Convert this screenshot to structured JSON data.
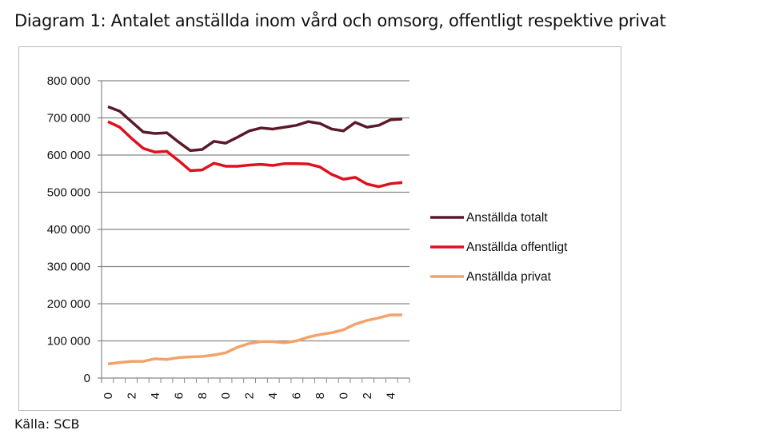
{
  "title": "Diagram 1: Antalet anställda inom vård och omsorg, offentligt respektive privat",
  "source": "Källa: SCB",
  "chart_data": {
    "type": "line",
    "title": "Diagram 1: Antalet anställda inom vård och omsorg, offentligt respektive privat",
    "xlabel": "",
    "ylabel": "",
    "ylim": [
      0,
      800000
    ],
    "yticks": [
      0,
      100000,
      200000,
      300000,
      400000,
      500000,
      600000,
      700000,
      800000
    ],
    "ytick_labels": [
      "0",
      "100 000",
      "200 000",
      "300 000",
      "400 000",
      "500 000",
      "600 000",
      "700 000",
      "800 000"
    ],
    "x": [
      1990,
      1991,
      1992,
      1993,
      1994,
      1995,
      1996,
      1997,
      1998,
      1999,
      2000,
      2001,
      2002,
      2003,
      2004,
      2005,
      2006,
      2007,
      2008,
      2009,
      2010,
      2011,
      2012,
      2013,
      2014,
      2015
    ],
    "xtick_labels": [
      "0",
      "2",
      "4",
      "6",
      "8",
      "0",
      "2",
      "4",
      "6",
      "8",
      "0",
      "2",
      "4"
    ],
    "grid": true,
    "legend_position": "right",
    "series": [
      {
        "name": "Anställda totalt",
        "color": "#5a1a2a",
        "values": [
          730000,
          718000,
          690000,
          662000,
          658000,
          660000,
          635000,
          612000,
          615000,
          637000,
          632000,
          648000,
          665000,
          673000,
          670000,
          675000,
          680000,
          690000,
          685000,
          670000,
          665000,
          688000,
          675000,
          680000,
          695000,
          697000
        ]
      },
      {
        "name": "Anställda offentligt",
        "color": "#e0101e",
        "values": [
          690000,
          675000,
          645000,
          618000,
          608000,
          610000,
          585000,
          558000,
          560000,
          578000,
          570000,
          570000,
          573000,
          575000,
          572000,
          577000,
          577000,
          576000,
          568000,
          548000,
          535000,
          540000,
          522000,
          515000,
          523000,
          526000
        ]
      },
      {
        "name": "Anställda privat",
        "color": "#f5a26a",
        "values": [
          38000,
          42000,
          45000,
          45000,
          52000,
          50000,
          55000,
          57000,
          58000,
          62000,
          68000,
          83000,
          93000,
          98000,
          98000,
          95000,
          100000,
          110000,
          117000,
          122000,
          130000,
          145000,
          155000,
          162000,
          170000,
          170000
        ]
      }
    ]
  }
}
